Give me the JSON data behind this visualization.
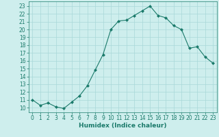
{
  "x": [
    0,
    1,
    2,
    3,
    4,
    5,
    6,
    7,
    8,
    9,
    10,
    11,
    12,
    13,
    14,
    15,
    16,
    17,
    18,
    19,
    20,
    21,
    22,
    23
  ],
  "y": [
    11.0,
    10.3,
    10.6,
    10.1,
    9.9,
    10.7,
    11.5,
    12.8,
    14.8,
    16.8,
    20.0,
    21.1,
    21.2,
    21.8,
    22.4,
    23.0,
    21.8,
    21.5,
    20.5,
    20.0,
    17.6,
    17.8,
    16.5,
    15.7
  ],
  "line_color": "#1a7a6a",
  "marker": "D",
  "marker_size": 2.0,
  "bg_color": "#ceeeed",
  "grid_color": "#a8d8d8",
  "xlabel": "Humidex (Indice chaleur)",
  "xlim": [
    -0.5,
    23.5
  ],
  "ylim": [
    9.4,
    23.6
  ],
  "yticks": [
    10,
    11,
    12,
    13,
    14,
    15,
    16,
    17,
    18,
    19,
    20,
    21,
    22,
    23
  ],
  "xticks": [
    0,
    1,
    2,
    3,
    4,
    5,
    6,
    7,
    8,
    9,
    10,
    11,
    12,
    13,
    14,
    15,
    16,
    17,
    18,
    19,
    20,
    21,
    22,
    23
  ],
  "tick_color": "#1a7a6a",
  "label_color": "#1a7a6a",
  "axis_fontsize": 6.5,
  "tick_fontsize": 5.5,
  "linewidth": 0.8
}
